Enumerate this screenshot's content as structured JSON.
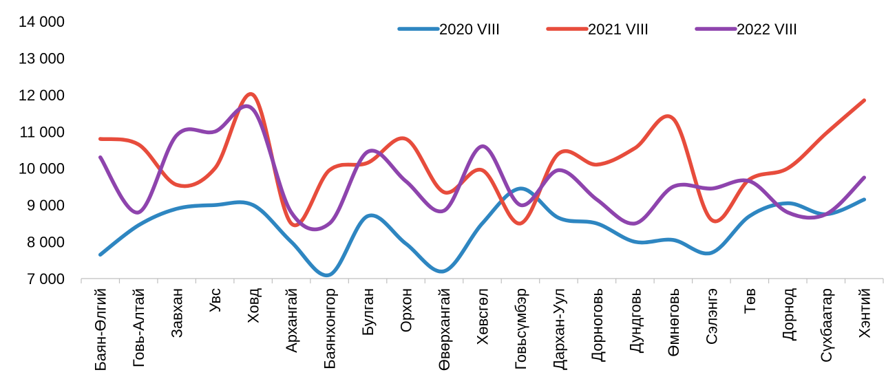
{
  "chart_data": {
    "type": "line",
    "categories": [
      "Баян-Өлгий",
      "Говь-Алтай",
      "Завхан",
      "Увс",
      "Ховд",
      "Архангай",
      "Баянхонгор",
      "Булган",
      "Орхон",
      "Өвөрхангай",
      "Хөвсгөл",
      "Говьсүмбэр",
      "Дархан-Уул",
      "Дорноговь",
      "Дундговь",
      "Өмнөговь",
      "Сэлэнгэ",
      "Төв",
      "Дорнод",
      "Сүхбаатар",
      "Хэнтий"
    ],
    "series": [
      {
        "name": "2020 VIII",
        "color": "#2E86C1",
        "values": [
          7650,
          8450,
          8900,
          9000,
          9000,
          8000,
          7100,
          8700,
          7950,
          7200,
          8500,
          9450,
          8650,
          8500,
          8000,
          8050,
          7700,
          8700,
          9050,
          8750,
          9150
        ]
      },
      {
        "name": "2021 VIII",
        "color": "#E74C3C",
        "values": [
          10800,
          10650,
          9550,
          10000,
          12000,
          8500,
          9950,
          10150,
          10800,
          9350,
          9950,
          8500,
          10400,
          10100,
          10550,
          11350,
          8600,
          9700,
          10000,
          10950,
          11850
        ]
      },
      {
        "name": "2022 VIII",
        "color": "#8E44AD",
        "values": [
          10300,
          8800,
          10900,
          11000,
          11600,
          8800,
          8500,
          10450,
          9650,
          8850,
          10600,
          9000,
          9950,
          9150,
          8500,
          9500,
          9450,
          9650,
          8800,
          8750,
          9750
        ]
      }
    ],
    "ylim": [
      7000,
      14000
    ],
    "yticks": [
      "7 000",
      "8 000",
      "9 000",
      "10 000",
      "11 000",
      "12 000",
      "13 000",
      "14 000"
    ],
    "ytick_values": [
      7000,
      8000,
      9000,
      10000,
      11000,
      12000,
      13000,
      14000
    ],
    "grid": false,
    "legend_position": "top-right",
    "title": "",
    "xlabel": "",
    "ylabel": ""
  }
}
